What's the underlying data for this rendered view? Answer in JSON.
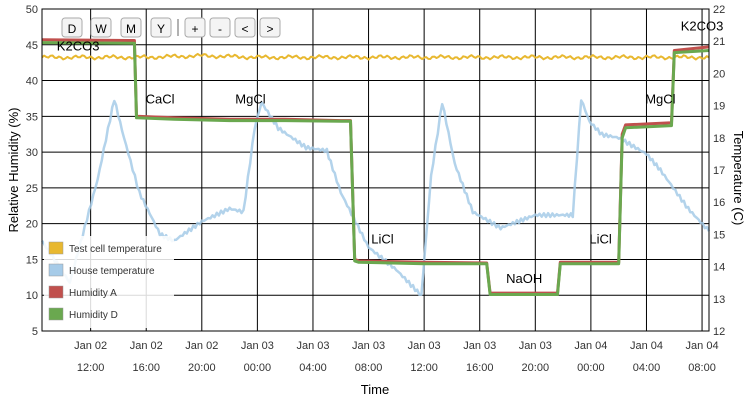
{
  "toolbar": {
    "buttons": [
      "D",
      "W",
      "M",
      "Y",
      "+",
      "-",
      "<",
      ">"
    ]
  },
  "chart_data": {
    "type": "line",
    "xlabel": "Time",
    "ylabel_left": "Relative Humidity (%)",
    "ylabel_right": "Temperature (C)",
    "ylim_left": [
      5,
      50
    ],
    "ylim_right": [
      12,
      22
    ],
    "y_ticks_left": [
      5,
      10,
      15,
      20,
      25,
      30,
      35,
      40,
      45,
      50
    ],
    "y_ticks_right": [
      12,
      13,
      14,
      15,
      16,
      17,
      18,
      19,
      20,
      21,
      22
    ],
    "xlim_hours": [
      8.5,
      56.5
    ],
    "x_ticks": [
      {
        "hour": 12,
        "line1": "Jan 02",
        "line2": "12:00"
      },
      {
        "hour": 16,
        "line1": "Jan 02",
        "line2": "16:00"
      },
      {
        "hour": 20,
        "line1": "Jan 02",
        "line2": "20:00"
      },
      {
        "hour": 24,
        "line1": "Jan 03",
        "line2": "00:00"
      },
      {
        "hour": 28,
        "line1": "Jan 03",
        "line2": "04:00"
      },
      {
        "hour": 32,
        "line1": "Jan 03",
        "line2": "08:00"
      },
      {
        "hour": 36,
        "line1": "Jan 03",
        "line2": "12:00"
      },
      {
        "hour": 40,
        "line1": "Jan 03",
        "line2": "16:00"
      },
      {
        "hour": 44,
        "line1": "Jan 03",
        "line2": "20:00"
      },
      {
        "hour": 48,
        "line1": "Jan 04",
        "line2": "00:00"
      },
      {
        "hour": 52,
        "line1": "Jan 04",
        "line2": "04:00"
      },
      {
        "hour": 56,
        "line1": "Jan 04",
        "line2": "08:00"
      }
    ],
    "grid": true,
    "legend_position": "bottom-left",
    "series": [
      {
        "name": "Test cell temperature",
        "axis": "right",
        "color": "#e8b830",
        "x": [
          8.5,
          12,
          16,
          20,
          24,
          28,
          32,
          36,
          40,
          44,
          48,
          52,
          56,
          56.5
        ],
        "y": [
          20.5,
          20.5,
          20.5,
          20.55,
          20.5,
          20.5,
          20.5,
          20.5,
          20.5,
          20.5,
          20.5,
          20.5,
          20.5,
          20.5
        ]
      },
      {
        "name": "House temperature",
        "axis": "right",
        "color": "#a6cbe8",
        "x": [
          8.5,
          10.5,
          12.5,
          13.7,
          14.4,
          15.5,
          17.0,
          18.0,
          20.0,
          22.0,
          23.0,
          23.8,
          24.3,
          25.5,
          27.5,
          29.0,
          30.0,
          32.0,
          34.0,
          35.8,
          36.5,
          37.3,
          38.2,
          39.5,
          41.5,
          44.0,
          46.0,
          46.7,
          47.3,
          47.9,
          48.8,
          50.0,
          52.0,
          53.0,
          55.0,
          56.5
        ],
        "y": [
          14.8,
          13.5,
          16.7,
          19.2,
          18.0,
          16.3,
          15.0,
          14.8,
          15.4,
          15.8,
          15.7,
          18.3,
          19.1,
          18.3,
          17.7,
          17.6,
          16.3,
          14.6,
          13.9,
          13.1,
          16.8,
          19.1,
          17.2,
          15.7,
          15.2,
          15.6,
          15.6,
          15.6,
          19.2,
          18.5,
          18.1,
          18.0,
          17.5,
          17.0,
          15.8,
          15.1
        ]
      },
      {
        "name": "Humidity A",
        "axis": "left",
        "color": "#c0504d",
        "x": [
          8.5,
          14.8,
          15.15,
          15.3,
          18.0,
          22.0,
          26.0,
          30.0,
          30.7,
          31.0,
          31.3,
          36.0,
          40.5,
          40.75,
          45.6,
          45.8,
          50.0,
          50.25,
          50.5,
          53.8,
          54.0,
          56.5
        ],
        "y": [
          45.7,
          45.6,
          45.6,
          35.0,
          34.8,
          34.6,
          34.6,
          34.4,
          34.4,
          15.0,
          14.8,
          14.6,
          14.5,
          10.3,
          10.3,
          14.6,
          14.6,
          32.5,
          33.8,
          34.1,
          44.2,
          44.7
        ]
      },
      {
        "name": "Humidity D",
        "axis": "left",
        "color": "#6aa84f",
        "x": [
          8.5,
          14.8,
          15.15,
          15.3,
          18.0,
          22.0,
          26.0,
          30.0,
          30.7,
          31.0,
          31.3,
          36.0,
          40.5,
          40.75,
          45.6,
          45.8,
          50.0,
          50.25,
          50.5,
          53.8,
          54.0,
          56.5
        ],
        "y": [
          45.3,
          45.2,
          45.2,
          34.8,
          34.6,
          34.4,
          34.4,
          34.3,
          34.3,
          14.8,
          14.6,
          14.4,
          14.4,
          10.1,
          10.1,
          14.4,
          14.4,
          32.0,
          33.4,
          33.7,
          43.9,
          44.2
        ]
      }
    ],
    "annotations": [
      {
        "text": "K2CO3",
        "hour": 11.1,
        "value": 44.2
      },
      {
        "text": "CaCl",
        "hour": 17.0,
        "value": 36.8
      },
      {
        "text": "MgCl",
        "hour": 23.5,
        "value": 36.8
      },
      {
        "text": "LiCl",
        "hour": 33.0,
        "value": 17.2
      },
      {
        "text": "NaOH",
        "hour": 43.2,
        "value": 11.7
      },
      {
        "text": "LiCl",
        "hour": 48.7,
        "value": 17.2
      },
      {
        "text": "MgCl",
        "hour": 53.0,
        "value": 36.8
      },
      {
        "text": "K2CO3",
        "hour": 56.0,
        "value": 47.0
      }
    ]
  }
}
